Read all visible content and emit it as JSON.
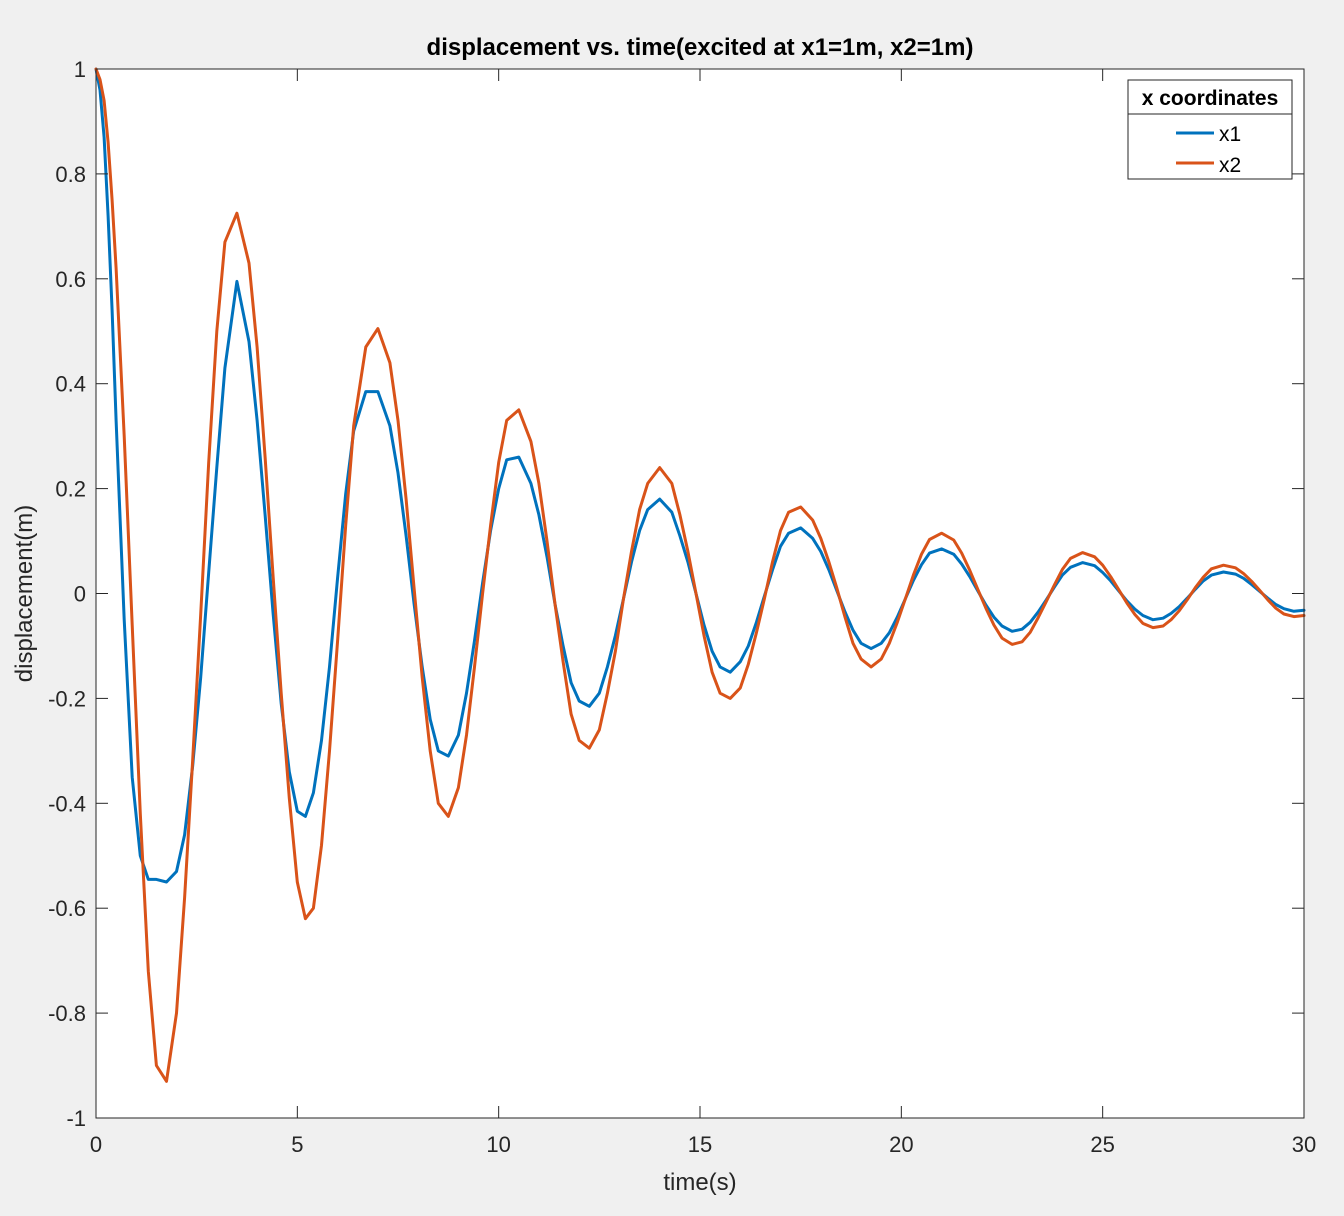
{
  "chart_data": {
    "type": "line",
    "title": "displacement vs. time(excited at x1=1m, x2=1m)",
    "xlabel": "time(s)",
    "ylabel": "displacement(m)",
    "xlim": [
      0,
      30
    ],
    "ylim": [
      -1,
      1
    ],
    "xticks": [
      0,
      5,
      10,
      15,
      20,
      25,
      30
    ],
    "yticks": [
      -1,
      -0.8,
      -0.6,
      -0.4,
      -0.2,
      0,
      0.2,
      0.4,
      0.6,
      0.8,
      1
    ],
    "xtick_labels": [
      "0",
      "5",
      "10",
      "15",
      "20",
      "25",
      "30"
    ],
    "ytick_labels": [
      "-1",
      "-0.8",
      "-0.6",
      "-0.4",
      "-0.2",
      "0",
      "0.2",
      "0.4",
      "0.6",
      "0.8",
      "1"
    ],
    "grid": false,
    "legend": {
      "title": "x coordinates",
      "location": "top-right"
    },
    "series": [
      {
        "name": "x1",
        "color": "#0072BD",
        "x": [
          0,
          0.1,
          0.2,
          0.3,
          0.4,
          0.5,
          0.7,
          0.9,
          1.1,
          1.3,
          1.5,
          1.75,
          2.0,
          2.2,
          2.4,
          2.6,
          2.8,
          3.0,
          3.2,
          3.5,
          3.8,
          4.0,
          4.2,
          4.4,
          4.6,
          4.8,
          5.0,
          5.2,
          5.4,
          5.6,
          5.8,
          6.0,
          6.2,
          6.4,
          6.7,
          7.0,
          7.3,
          7.5,
          7.7,
          7.9,
          8.1,
          8.3,
          8.5,
          8.75,
          9.0,
          9.2,
          9.4,
          9.6,
          9.8,
          10.0,
          10.2,
          10.5,
          10.8,
          11.0,
          11.2,
          11.4,
          11.6,
          11.8,
          12.0,
          12.25,
          12.5,
          12.7,
          12.9,
          13.1,
          13.3,
          13.5,
          13.7,
          14.0,
          14.3,
          14.5,
          14.7,
          14.9,
          15.1,
          15.3,
          15.5,
          15.75,
          16.0,
          16.2,
          16.4,
          16.6,
          16.8,
          17.0,
          17.2,
          17.5,
          17.8,
          18.0,
          18.2,
          18.4,
          18.6,
          18.8,
          19.0,
          19.25,
          19.5,
          19.7,
          19.9,
          20.1,
          20.3,
          20.5,
          20.7,
          21.0,
          21.3,
          21.5,
          21.7,
          21.9,
          22.1,
          22.3,
          22.5,
          22.75,
          23.0,
          23.2,
          23.4,
          23.6,
          23.8,
          24.0,
          24.2,
          24.5,
          24.8,
          25.0,
          25.2,
          25.4,
          25.6,
          25.8,
          26.0,
          26.25,
          26.5,
          26.7,
          26.9,
          27.1,
          27.3,
          27.5,
          27.7,
          28.0,
          28.3,
          28.5,
          28.7,
          28.9,
          29.1,
          29.3,
          29.5,
          29.75,
          30.0
        ],
        "y": [
          1.0,
          0.96,
          0.87,
          0.72,
          0.54,
          0.33,
          -0.05,
          -0.35,
          -0.5,
          -0.545,
          -0.545,
          -0.55,
          -0.53,
          -0.46,
          -0.33,
          -0.16,
          0.04,
          0.24,
          0.43,
          0.595,
          0.48,
          0.33,
          0.15,
          -0.04,
          -0.21,
          -0.34,
          -0.415,
          -0.425,
          -0.38,
          -0.28,
          -0.14,
          0.03,
          0.19,
          0.31,
          0.385,
          0.385,
          0.32,
          0.23,
          0.11,
          -0.02,
          -0.14,
          -0.24,
          -0.3,
          -0.31,
          -0.27,
          -0.19,
          -0.09,
          0.02,
          0.12,
          0.2,
          0.255,
          0.26,
          0.21,
          0.15,
          0.07,
          -0.02,
          -0.1,
          -0.17,
          -0.205,
          -0.215,
          -0.19,
          -0.14,
          -0.08,
          -0.01,
          0.06,
          0.12,
          0.16,
          0.18,
          0.155,
          0.11,
          0.06,
          0.0,
          -0.06,
          -0.11,
          -0.14,
          -0.15,
          -0.13,
          -0.1,
          -0.055,
          -0.005,
          0.045,
          0.09,
          0.115,
          0.125,
          0.105,
          0.08,
          0.045,
          0.005,
          -0.035,
          -0.07,
          -0.095,
          -0.105,
          -0.095,
          -0.075,
          -0.045,
          -0.01,
          0.025,
          0.055,
          0.077,
          0.085,
          0.075,
          0.056,
          0.032,
          0.005,
          -0.022,
          -0.045,
          -0.062,
          -0.072,
          -0.068,
          -0.055,
          -0.035,
          -0.012,
          0.012,
          0.035,
          0.05,
          0.059,
          0.053,
          0.04,
          0.024,
          0.005,
          -0.014,
          -0.03,
          -0.042,
          -0.05,
          -0.047,
          -0.038,
          -0.025,
          -0.009,
          0.008,
          0.024,
          0.035,
          0.041,
          0.037,
          0.029,
          0.017,
          0.004,
          -0.009,
          -0.021,
          -0.029,
          -0.034,
          -0.032
        ]
      },
      {
        "name": "x2",
        "color": "#D95319",
        "x": [
          0,
          0.1,
          0.2,
          0.3,
          0.4,
          0.5,
          0.7,
          0.9,
          1.1,
          1.3,
          1.5,
          1.75,
          2.0,
          2.2,
          2.4,
          2.6,
          2.8,
          3.0,
          3.2,
          3.5,
          3.8,
          4.0,
          4.2,
          4.4,
          4.6,
          4.8,
          5.0,
          5.2,
          5.4,
          5.6,
          5.8,
          6.0,
          6.2,
          6.4,
          6.7,
          7.0,
          7.3,
          7.5,
          7.7,
          7.9,
          8.1,
          8.3,
          8.5,
          8.75,
          9.0,
          9.2,
          9.4,
          9.6,
          9.8,
          10.0,
          10.2,
          10.5,
          10.8,
          11.0,
          11.2,
          11.4,
          11.6,
          11.8,
          12.0,
          12.25,
          12.5,
          12.7,
          12.9,
          13.1,
          13.3,
          13.5,
          13.7,
          14.0,
          14.3,
          14.5,
          14.7,
          14.9,
          15.1,
          15.3,
          15.5,
          15.75,
          16.0,
          16.2,
          16.4,
          16.6,
          16.8,
          17.0,
          17.2,
          17.5,
          17.8,
          18.0,
          18.2,
          18.4,
          18.6,
          18.8,
          19.0,
          19.25,
          19.5,
          19.7,
          19.9,
          20.1,
          20.3,
          20.5,
          20.7,
          21.0,
          21.3,
          21.5,
          21.7,
          21.9,
          22.1,
          22.3,
          22.5,
          22.75,
          23.0,
          23.2,
          23.4,
          23.6,
          23.8,
          24.0,
          24.2,
          24.5,
          24.8,
          25.0,
          25.2,
          25.4,
          25.6,
          25.8,
          26.0,
          26.25,
          26.5,
          26.7,
          26.9,
          27.1,
          27.3,
          27.5,
          27.7,
          28.0,
          28.3,
          28.5,
          28.7,
          28.9,
          29.1,
          29.3,
          29.5,
          29.75,
          30.0
        ],
        "y": [
          1.0,
          0.98,
          0.94,
          0.86,
          0.75,
          0.62,
          0.3,
          -0.06,
          -0.42,
          -0.72,
          -0.9,
          -0.93,
          -0.8,
          -0.58,
          -0.32,
          -0.04,
          0.25,
          0.5,
          0.67,
          0.725,
          0.63,
          0.47,
          0.26,
          0.03,
          -0.19,
          -0.39,
          -0.55,
          -0.62,
          -0.6,
          -0.48,
          -0.3,
          -0.09,
          0.13,
          0.32,
          0.47,
          0.505,
          0.44,
          0.33,
          0.18,
          0.01,
          -0.16,
          -0.3,
          -0.4,
          -0.425,
          -0.37,
          -0.27,
          -0.14,
          0.0,
          0.13,
          0.25,
          0.33,
          0.35,
          0.29,
          0.21,
          0.1,
          -0.02,
          -0.13,
          -0.23,
          -0.28,
          -0.295,
          -0.26,
          -0.19,
          -0.11,
          -0.01,
          0.08,
          0.16,
          0.21,
          0.24,
          0.21,
          0.15,
          0.08,
          0.0,
          -0.08,
          -0.15,
          -0.19,
          -0.2,
          -0.18,
          -0.135,
          -0.075,
          -0.01,
          0.06,
          0.12,
          0.155,
          0.165,
          0.14,
          0.105,
          0.06,
          0.01,
          -0.045,
          -0.095,
          -0.125,
          -0.14,
          -0.125,
          -0.095,
          -0.055,
          -0.01,
          0.035,
          0.075,
          0.103,
          0.115,
          0.102,
          0.077,
          0.044,
          0.008,
          -0.028,
          -0.06,
          -0.085,
          -0.097,
          -0.092,
          -0.074,
          -0.046,
          -0.015,
          0.016,
          0.046,
          0.067,
          0.078,
          0.07,
          0.054,
          0.032,
          0.007,
          -0.018,
          -0.04,
          -0.057,
          -0.065,
          -0.062,
          -0.05,
          -0.033,
          -0.012,
          0.011,
          0.031,
          0.047,
          0.054,
          0.049,
          0.038,
          0.023,
          0.006,
          -0.012,
          -0.028,
          -0.039,
          -0.044,
          -0.042
        ]
      }
    ]
  }
}
